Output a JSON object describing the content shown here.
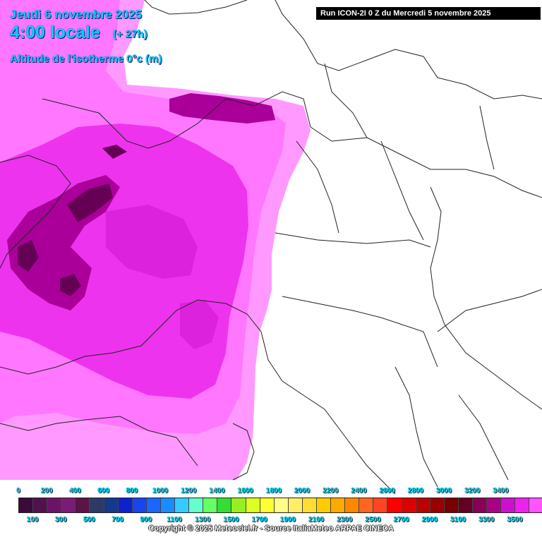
{
  "header": {
    "date": "Jeudi 6 novembre 2025",
    "time": "4:00 locale",
    "lead": "(+ 27h)",
    "parameter": "Altitude de l'isotherme 0°c (m)",
    "run": "Run ICON-2I 0 Z du Mercredi 5 novembre 2025"
  },
  "legend": {
    "top_labels": [
      "0",
      "200",
      "400",
      "600",
      "800",
      "1000",
      "1200",
      "1400",
      "1600",
      "1800",
      "2000",
      "2200",
      "2400",
      "2600",
      "2800",
      "3000",
      "3200",
      "3400"
    ],
    "bottom_labels": [
      "100",
      "300",
      "500",
      "700",
      "900",
      "1100",
      "1300",
      "1500",
      "1700",
      "1900",
      "2100",
      "2300",
      "2500",
      "2700",
      "2900",
      "3100",
      "3300",
      "3500"
    ],
    "colors": [
      "#3a0a3a",
      "#52104f",
      "#6c1269",
      "#7a1b78",
      "#5a1446",
      "#2d3a66",
      "#123a8a",
      "#0c22cc",
      "#1a44ee",
      "#1a66ff",
      "#1a8cff",
      "#33ccff",
      "#66ffcc",
      "#66ff66",
      "#33dd33",
      "#99ee22",
      "#ddff22",
      "#ffff33",
      "#ffff88",
      "#ffee66",
      "#ffdd33",
      "#ffcc00",
      "#ffaa00",
      "#ff8800",
      "#ff6622",
      "#ff4422",
      "#ff0000",
      "#dd0000",
      "#bb0000",
      "#990000",
      "#770000",
      "#660022",
      "#880055",
      "#aa0088",
      "#cc11cc",
      "#ee22ee",
      "#ff55ff",
      "#ff88ff"
    ],
    "copyright": "Copyright © 2025 Meteociel.fr - Source ItaliaMeteo ARPAE CINECA"
  },
  "map_colors": {
    "sea": "#ffffff",
    "pink_light": "#ff99ff",
    "pink_mid": "#ff77ff",
    "magenta": "#ee33ee",
    "magenta_strong": "#dd22dd",
    "purple": "#aa0099",
    "dark_purple": "#660055",
    "border_line": "#222222"
  }
}
